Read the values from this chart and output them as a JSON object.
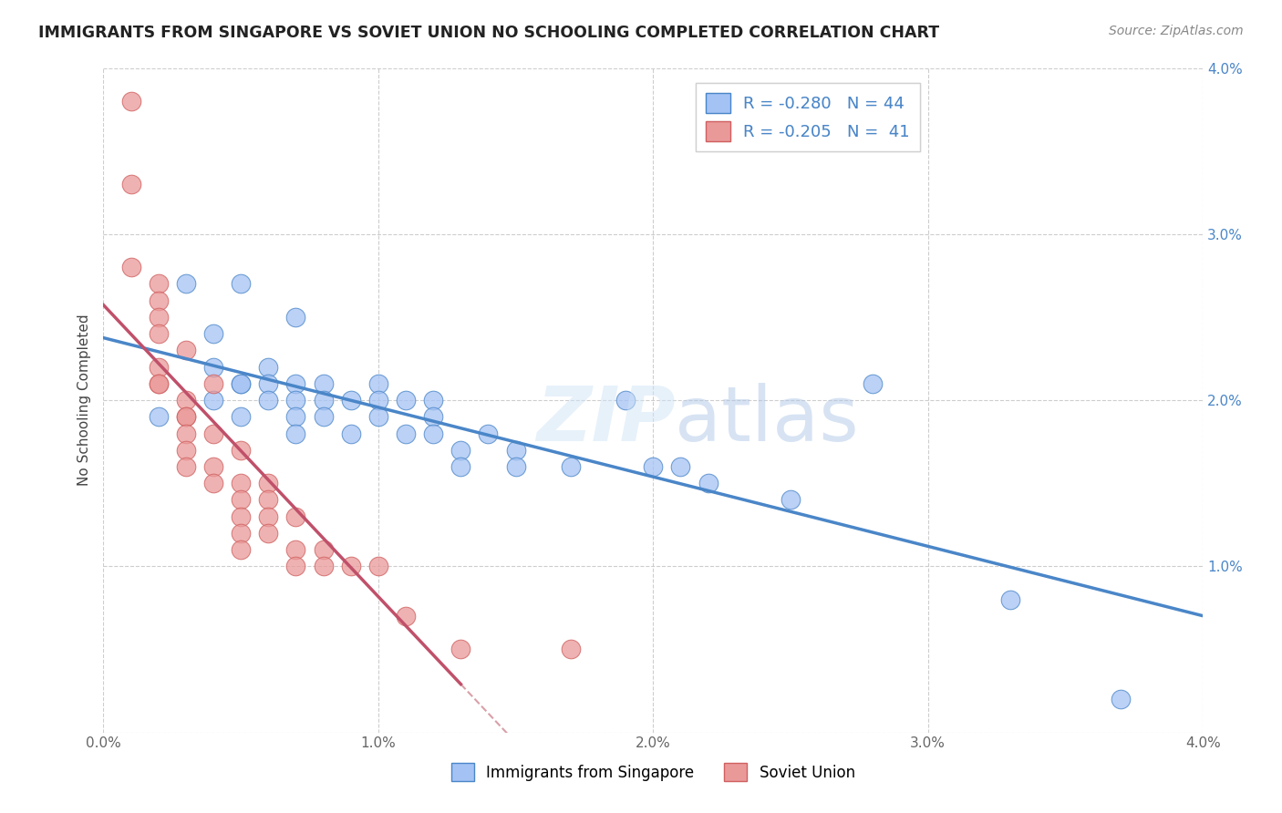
{
  "title": "IMMIGRANTS FROM SINGAPORE VS SOVIET UNION NO SCHOOLING COMPLETED CORRELATION CHART",
  "source": "Source: ZipAtlas.com",
  "ylabel_left": "No Schooling Completed",
  "singapore_R": -0.28,
  "singapore_N": 44,
  "soviet_R": -0.205,
  "soviet_N": 41,
  "xlim": [
    0.0,
    0.04
  ],
  "ylim": [
    0.0,
    0.04
  ],
  "xticks": [
    0.0,
    0.01,
    0.02,
    0.03,
    0.04
  ],
  "yticks": [
    0.0,
    0.01,
    0.02,
    0.03,
    0.04
  ],
  "xtick_labels": [
    "0.0%",
    "1.0%",
    "2.0%",
    "3.0%",
    "4.0%"
  ],
  "ytick_labels_left": [
    "",
    "",
    "",
    "",
    ""
  ],
  "ytick_labels_right": [
    "",
    "1.0%",
    "2.0%",
    "3.0%",
    "4.0%"
  ],
  "singapore_color": "#a4c2f4",
  "soviet_color": "#ea9999",
  "singapore_color_line": "#4a86c8",
  "soviet_color_line": "#c0506a",
  "dashed_line_color": "#d8a0a8",
  "background_color": "#ffffff",
  "grid_color": "#c8c8c8",
  "singapore_scatter": [
    [
      0.002,
      0.019
    ],
    [
      0.003,
      0.027
    ],
    [
      0.004,
      0.024
    ],
    [
      0.004,
      0.022
    ],
    [
      0.004,
      0.02
    ],
    [
      0.005,
      0.027
    ],
    [
      0.005,
      0.021
    ],
    [
      0.005,
      0.021
    ],
    [
      0.005,
      0.019
    ],
    [
      0.006,
      0.022
    ],
    [
      0.006,
      0.021
    ],
    [
      0.006,
      0.02
    ],
    [
      0.007,
      0.025
    ],
    [
      0.007,
      0.021
    ],
    [
      0.007,
      0.02
    ],
    [
      0.007,
      0.019
    ],
    [
      0.007,
      0.018
    ],
    [
      0.008,
      0.021
    ],
    [
      0.008,
      0.02
    ],
    [
      0.008,
      0.019
    ],
    [
      0.009,
      0.02
    ],
    [
      0.009,
      0.018
    ],
    [
      0.01,
      0.021
    ],
    [
      0.01,
      0.02
    ],
    [
      0.01,
      0.019
    ],
    [
      0.011,
      0.02
    ],
    [
      0.011,
      0.018
    ],
    [
      0.012,
      0.02
    ],
    [
      0.012,
      0.019
    ],
    [
      0.012,
      0.018
    ],
    [
      0.013,
      0.017
    ],
    [
      0.013,
      0.016
    ],
    [
      0.014,
      0.018
    ],
    [
      0.015,
      0.017
    ],
    [
      0.015,
      0.016
    ],
    [
      0.017,
      0.016
    ],
    [
      0.019,
      0.02
    ],
    [
      0.02,
      0.016
    ],
    [
      0.021,
      0.016
    ],
    [
      0.022,
      0.015
    ],
    [
      0.025,
      0.014
    ],
    [
      0.028,
      0.021
    ],
    [
      0.033,
      0.008
    ],
    [
      0.037,
      0.002
    ]
  ],
  "soviet_scatter": [
    [
      0.001,
      0.038
    ],
    [
      0.001,
      0.033
    ],
    [
      0.001,
      0.028
    ],
    [
      0.002,
      0.027
    ],
    [
      0.002,
      0.026
    ],
    [
      0.002,
      0.025
    ],
    [
      0.002,
      0.024
    ],
    [
      0.002,
      0.022
    ],
    [
      0.002,
      0.021
    ],
    [
      0.002,
      0.021
    ],
    [
      0.003,
      0.023
    ],
    [
      0.003,
      0.02
    ],
    [
      0.003,
      0.019
    ],
    [
      0.003,
      0.019
    ],
    [
      0.003,
      0.018
    ],
    [
      0.003,
      0.017
    ],
    [
      0.003,
      0.016
    ],
    [
      0.004,
      0.021
    ],
    [
      0.004,
      0.018
    ],
    [
      0.004,
      0.016
    ],
    [
      0.004,
      0.015
    ],
    [
      0.005,
      0.017
    ],
    [
      0.005,
      0.015
    ],
    [
      0.005,
      0.014
    ],
    [
      0.005,
      0.013
    ],
    [
      0.005,
      0.012
    ],
    [
      0.005,
      0.011
    ],
    [
      0.006,
      0.015
    ],
    [
      0.006,
      0.014
    ],
    [
      0.006,
      0.013
    ],
    [
      0.006,
      0.012
    ],
    [
      0.007,
      0.013
    ],
    [
      0.007,
      0.011
    ],
    [
      0.007,
      0.01
    ],
    [
      0.008,
      0.011
    ],
    [
      0.008,
      0.01
    ],
    [
      0.009,
      0.01
    ],
    [
      0.01,
      0.01
    ],
    [
      0.011,
      0.007
    ],
    [
      0.013,
      0.005
    ],
    [
      0.017,
      0.005
    ]
  ]
}
